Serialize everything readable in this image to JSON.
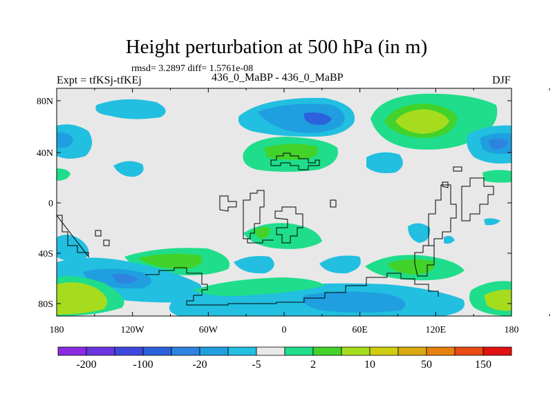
{
  "title": "Height perturbation at 500 hPa (in m)",
  "stats": "rmsd= 3.2897 diff= 1.5761e-08",
  "experiment": "Expt = tfKSj-tfKEj",
  "cases": "436_0_MaBP - 436_0_MaBP",
  "season": "DJF",
  "lat_axis": [
    "80N",
    "40N",
    "0",
    "40S",
    "80S"
  ],
  "lon_axis": [
    "180",
    "120W",
    "60W",
    "0",
    "60E",
    "120E",
    "180"
  ],
  "colorbar": {
    "labels": [
      "-200",
      "-100",
      "-20",
      "-5",
      "2",
      "10",
      "50",
      "150"
    ],
    "colors": [
      "#8a2be2",
      "#6b35e0",
      "#3f48dc",
      "#2c61dc",
      "#2f83e0",
      "#1f9fe0",
      "#22bfe0",
      "#e8e8e8",
      "#1fdd8a",
      "#42d22a",
      "#a6dc1e",
      "#cfcd12",
      "#d9a90f",
      "#e6800e",
      "#ea4a14",
      "#e11212"
    ]
  },
  "colors": {
    "background": "#e8e8e8",
    "coastline": "#000000"
  }
}
